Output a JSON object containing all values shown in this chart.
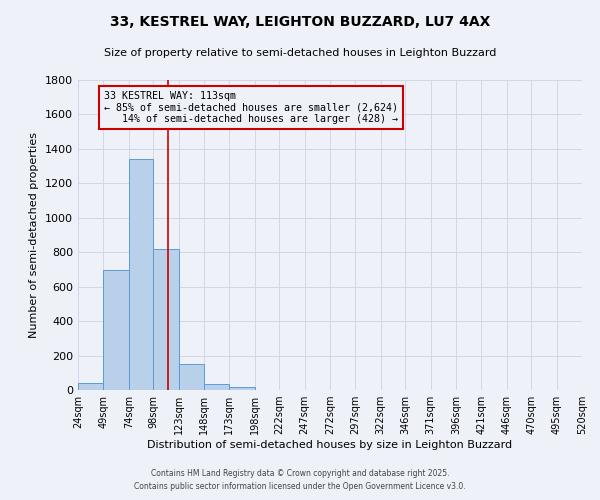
{
  "title": "33, KESTREL WAY, LEIGHTON BUZZARD, LU7 4AX",
  "subtitle": "Size of property relative to semi-detached houses in Leighton Buzzard",
  "xlabel": "Distribution of semi-detached houses by size in Leighton Buzzard",
  "ylabel": "Number of semi-detached properties",
  "bin_labels": [
    "24sqm",
    "49sqm",
    "74sqm",
    "98sqm",
    "123sqm",
    "148sqm",
    "173sqm",
    "198sqm",
    "222sqm",
    "247sqm",
    "272sqm",
    "297sqm",
    "322sqm",
    "346sqm",
    "371sqm",
    "396sqm",
    "421sqm",
    "446sqm",
    "470sqm",
    "495sqm",
    "520sqm"
  ],
  "bar_values": [
    40,
    695,
    1340,
    820,
    150,
    35,
    20,
    0,
    0,
    0,
    0,
    0,
    0,
    0,
    0,
    0,
    0,
    0,
    0,
    0
  ],
  "bin_edges": [
    24,
    49,
    74,
    98,
    123,
    148,
    173,
    198,
    222,
    247,
    272,
    297,
    322,
    346,
    371,
    396,
    421,
    446,
    470,
    495,
    520
  ],
  "bar_color": "#b8d0ea",
  "bar_edge_color": "#5b9bd5",
  "grid_color": "#d0d8e8",
  "background_color": "#eef1f8",
  "vline_x": 113,
  "vline_color": "#cc0000",
  "annotation_text": "33 KESTREL WAY: 113sqm\n← 85% of semi-detached houses are smaller (2,624)\n   14% of semi-detached houses are larger (428) →",
  "annotation_box_color": "#cc0000",
  "ylim": [
    0,
    1800
  ],
  "yticks": [
    0,
    200,
    400,
    600,
    800,
    1000,
    1200,
    1400,
    1600,
    1800
  ],
  "footer1": "Contains HM Land Registry data © Crown copyright and database right 2025.",
  "footer2": "Contains public sector information licensed under the Open Government Licence v3.0."
}
